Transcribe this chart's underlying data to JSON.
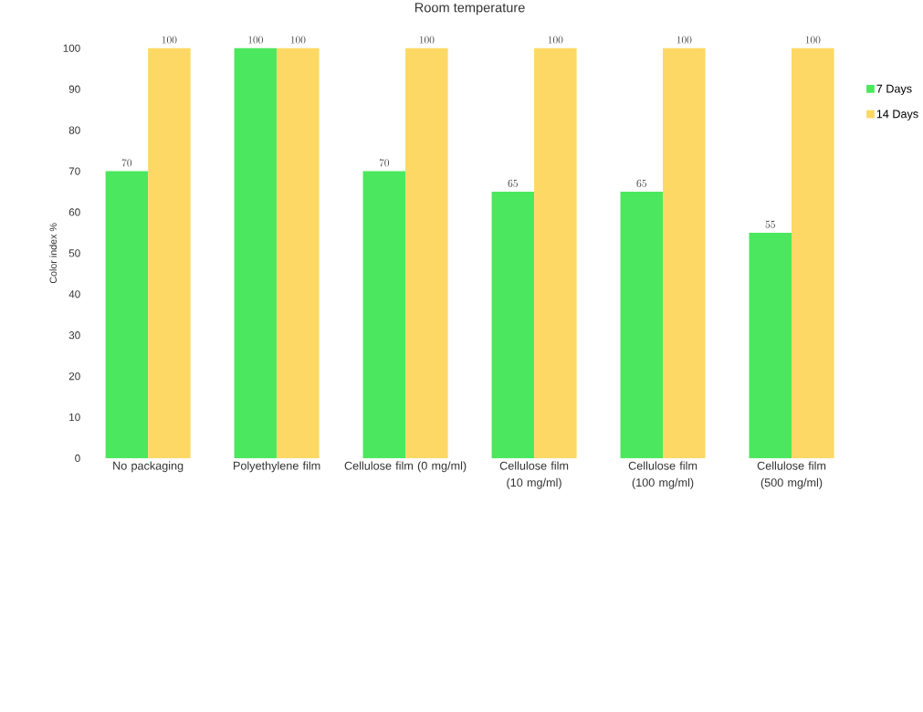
{
  "chart_data": {
    "type": "bar",
    "title": "Room temperature",
    "ylabel": "Color index %",
    "categories": [
      "No packaging",
      "Polyethylene film",
      "Cellulose film (0 mg/ml)",
      "Cellulose film (10 mg/ml)",
      "Cellulose film (100 mg/ml)",
      "Cellulose film (500 mg/ml)"
    ],
    "series": [
      {
        "name": "7 Days",
        "color": "#4be85f",
        "values": [
          70,
          100,
          70,
          65,
          65,
          55
        ]
      },
      {
        "name": "14 Days",
        "color": "#fdd865",
        "values": [
          100,
          100,
          100,
          100,
          100,
          100
        ]
      }
    ],
    "ylim": [
      0,
      100
    ],
    "yticks": [
      0,
      10,
      20,
      30,
      40,
      50,
      60,
      70,
      80,
      90,
      100
    ],
    "grid": false,
    "legend": "right",
    "data_labels": true
  }
}
